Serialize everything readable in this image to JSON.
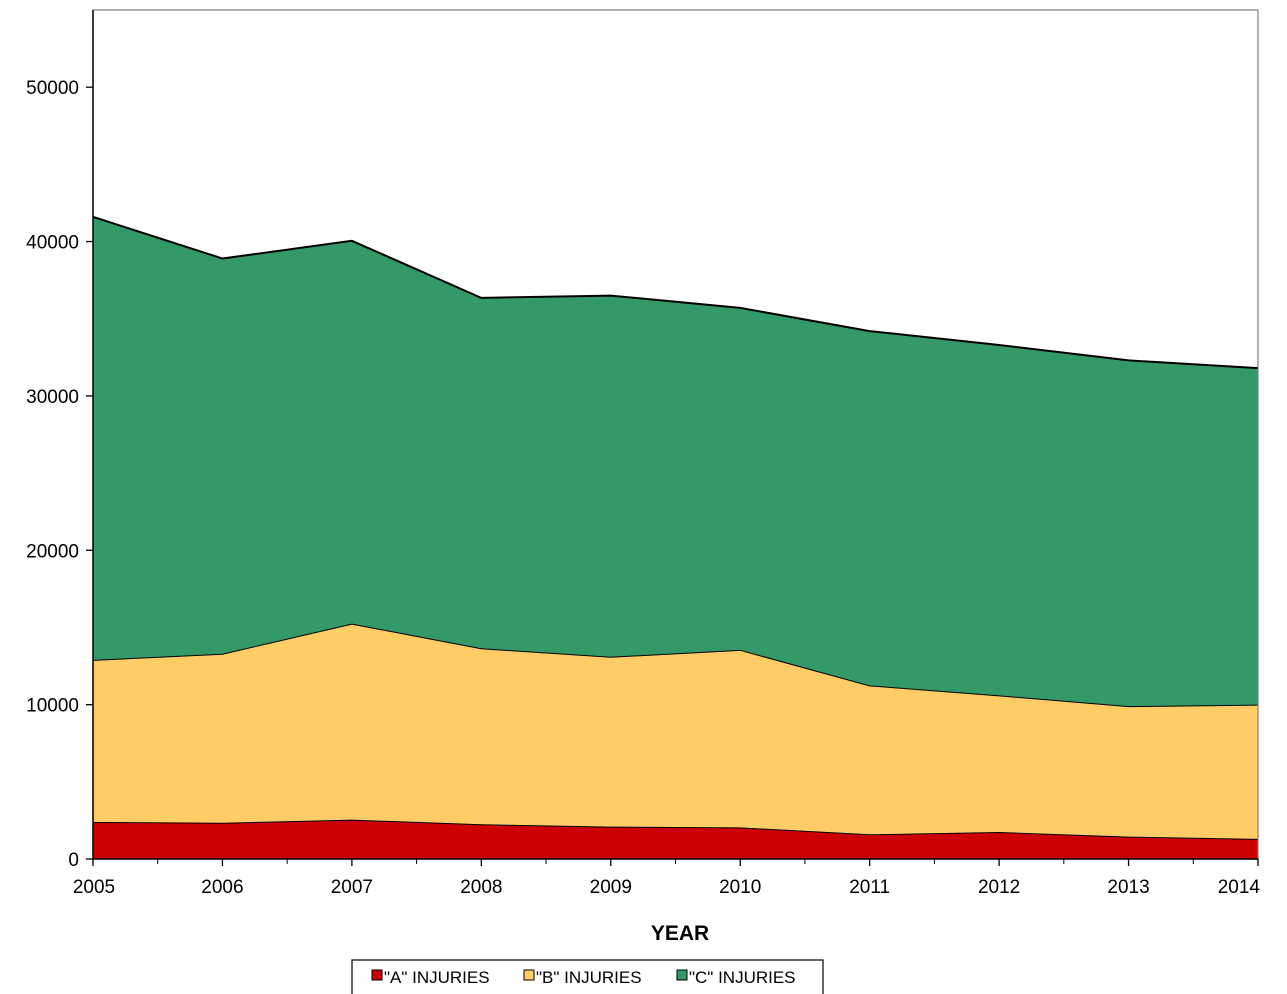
{
  "chart_data": {
    "type": "area",
    "stacked": true,
    "title": "",
    "xlabel": "YEAR",
    "ylabel": "",
    "x": [
      "2005",
      "2006",
      "2007",
      "2008",
      "2009",
      "2010",
      "2011",
      "2012",
      "2013",
      "2014"
    ],
    "ylim": [
      0,
      55000
    ],
    "yticks": [
      0,
      10000,
      20000,
      30000,
      40000,
      50000
    ],
    "grid": false,
    "legend_position": "bottom",
    "series": [
      {
        "name": "\"A\" INJURIES",
        "color": "#cc0000",
        "values": [
          2400,
          2350,
          2550,
          2250,
          2100,
          2050,
          1600,
          1750,
          1450,
          1300
        ]
      },
      {
        "name": "\"B\" INJURIES",
        "color": "#ffcc66",
        "values": [
          10500,
          10950,
          12700,
          11400,
          11000,
          11500,
          9650,
          8850,
          8450,
          8700
        ]
      },
      {
        "name": "\"C\" INJURIES",
        "color": "#339966",
        "values": [
          28700,
          25600,
          24800,
          22700,
          23400,
          22150,
          22950,
          22700,
          22400,
          21800
        ]
      }
    ]
  }
}
